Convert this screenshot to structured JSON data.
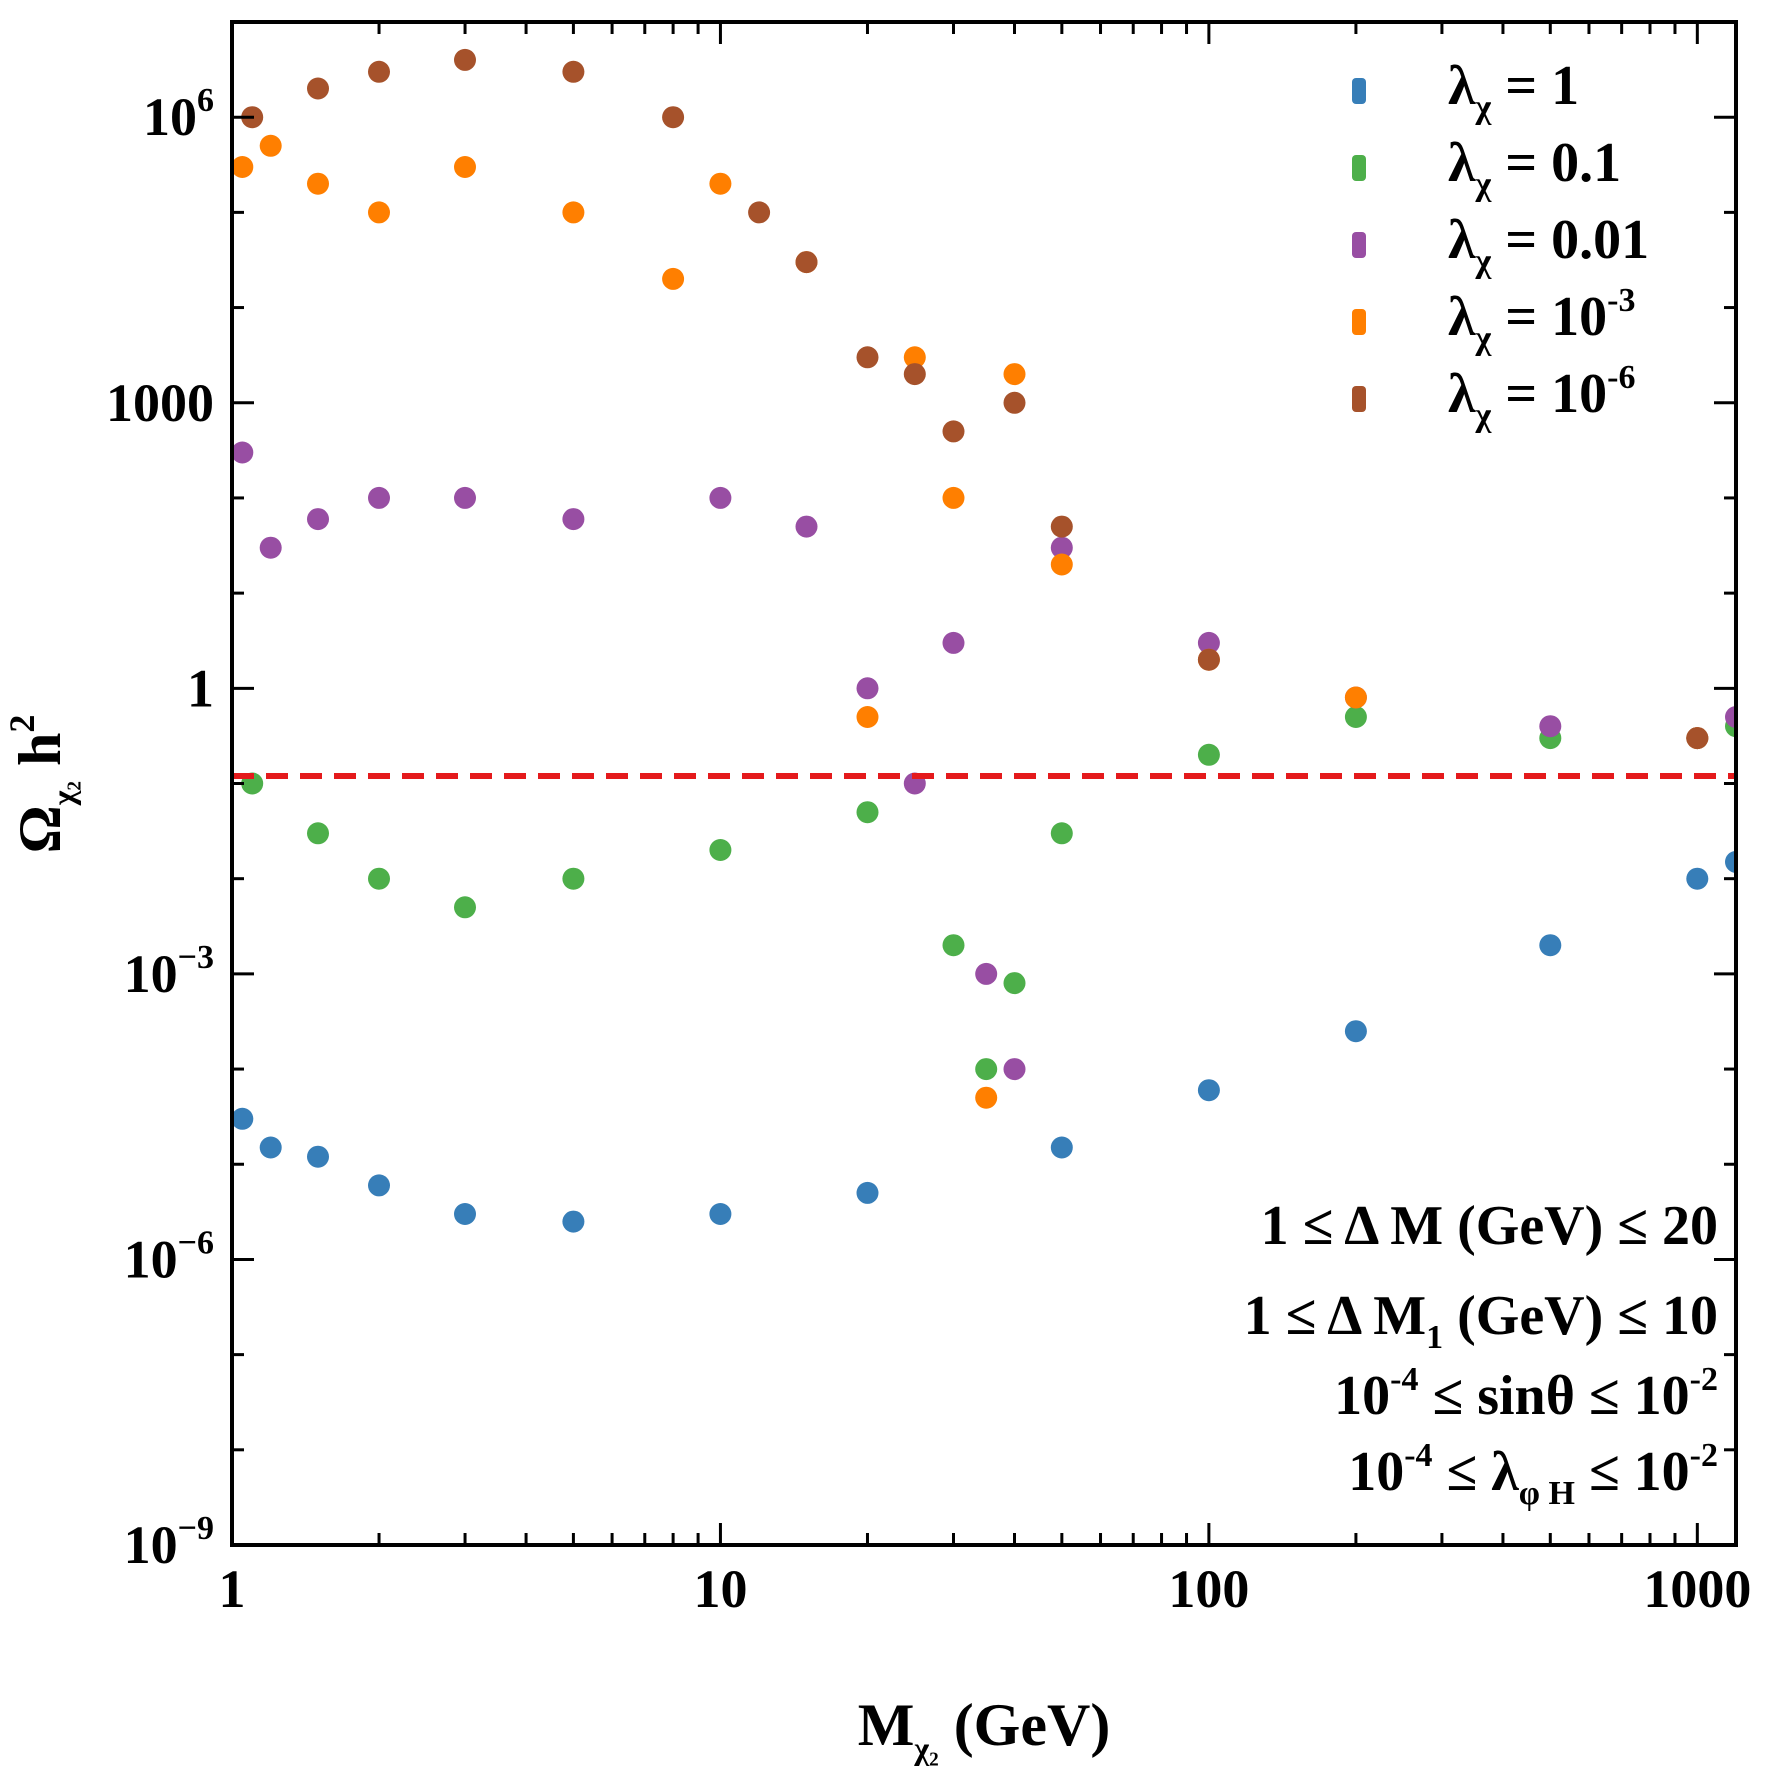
{
  "chart_data": {
    "type": "scatter",
    "xlabel": "M",
    "xlabel_sub": "χ₂",
    "xlabel_unit": "(GeV)",
    "ylabel": "Ω",
    "ylabel_sub": "χ₂",
    "ylabel_tail": "h",
    "ylabel_sup": "2",
    "xscale": "log",
    "yscale": "log",
    "xlim": [
      1,
      1200
    ],
    "ylim": [
      1e-09,
      10000000.0
    ],
    "xticks": [
      {
        "value": 1,
        "label": "1"
      },
      {
        "value": 10,
        "label": "10"
      },
      {
        "value": 100,
        "label": "100"
      },
      {
        "value": 1000,
        "label": "1000"
      }
    ],
    "yticks": [
      {
        "value": 1e-09,
        "base": "10",
        "exp": "−9"
      },
      {
        "value": 1e-06,
        "base": "10",
        "exp": "−6"
      },
      {
        "value": 0.001,
        "base": "10",
        "exp": "−3"
      },
      {
        "value": 1,
        "base": "1",
        "exp": ""
      },
      {
        "value": 1000,
        "base": "1000",
        "exp": ""
      },
      {
        "value": 1000000.0,
        "base": "10",
        "exp": "6"
      }
    ],
    "grid": false,
    "legend_position": "top-right",
    "reference_line": {
      "y": 0.12,
      "style": "dashed",
      "color": "#e41a1c"
    },
    "series": [
      {
        "name": "λχ = 1",
        "label_main": "λ",
        "label_sub": "χ",
        "label_eq": " = 1",
        "label_sup": "",
        "color": "#377eb8",
        "points": [
          [
            1.05,
            3e-05
          ],
          [
            1.2,
            1.5e-05
          ],
          [
            1.5,
            1.2e-05
          ],
          [
            2,
            6e-06
          ],
          [
            3,
            3e-06
          ],
          [
            5,
            2.5e-06
          ],
          [
            10,
            3e-06
          ],
          [
            20,
            5e-06
          ],
          [
            50,
            1.5e-05
          ],
          [
            100,
            6e-05
          ],
          [
            200,
            0.00025
          ],
          [
            500,
            0.002
          ],
          [
            1000,
            0.01
          ],
          [
            1200,
            0.015
          ]
        ]
      },
      {
        "name": "λχ = 0.1",
        "label_main": "λ",
        "label_sub": "χ",
        "label_eq": " = 0.1",
        "label_sup": "",
        "color": "#4daf4a",
        "points": [
          [
            1.1,
            0.1
          ],
          [
            1.5,
            0.03
          ],
          [
            2,
            0.01
          ],
          [
            3,
            0.005
          ],
          [
            5,
            0.01
          ],
          [
            10,
            0.02
          ],
          [
            20,
            0.05
          ],
          [
            30,
            0.002
          ],
          [
            35,
            0.0001
          ],
          [
            40,
            0.0008
          ],
          [
            50,
            0.03
          ],
          [
            100,
            0.2
          ],
          [
            200,
            0.5
          ],
          [
            500,
            0.3
          ],
          [
            1000,
            0.3
          ],
          [
            1200,
            0.4
          ]
        ]
      },
      {
        "name": "λχ = 0.01",
        "label_main": "λ",
        "label_sub": "χ",
        "label_eq": " = 0.01",
        "label_sup": "",
        "color": "#984ea3",
        "points": [
          [
            1.05,
            300
          ],
          [
            1.2,
            30
          ],
          [
            1.5,
            60
          ],
          [
            2,
            100
          ],
          [
            3,
            100
          ],
          [
            5,
            60
          ],
          [
            10,
            100
          ],
          [
            15,
            50
          ],
          [
            20,
            1
          ],
          [
            25,
            0.1
          ],
          [
            30,
            3
          ],
          [
            35,
            0.001
          ],
          [
            40,
            0.0001
          ],
          [
            50,
            30
          ],
          [
            100,
            3
          ],
          [
            200,
            0.8
          ],
          [
            500,
            0.4
          ],
          [
            1000,
            0.3
          ],
          [
            1200,
            0.5
          ]
        ]
      },
      {
        "name": "λχ = 10-3",
        "label_main": "λ",
        "label_sub": "χ",
        "label_eq": " = 10",
        "label_sup": "-3",
        "color": "#ff7f00",
        "points": [
          [
            1.05,
            300000.0
          ],
          [
            1.2,
            500000.0
          ],
          [
            1.5,
            200000.0
          ],
          [
            2,
            100000.0
          ],
          [
            3,
            300000.0
          ],
          [
            5,
            100000.0
          ],
          [
            8,
            20000.0
          ],
          [
            10,
            200000.0
          ],
          [
            15,
            30000.0
          ],
          [
            20,
            0.5
          ],
          [
            25,
            3000
          ],
          [
            30,
            100
          ],
          [
            35,
            5e-05
          ],
          [
            40,
            2000
          ],
          [
            50,
            20
          ],
          [
            100,
            2
          ],
          [
            200,
            0.8
          ],
          [
            1000,
            0.3
          ]
        ]
      },
      {
        "name": "λχ = 10-6",
        "label_main": "λ",
        "label_sub": "χ",
        "label_eq": " = 10",
        "label_sup": "-6",
        "color": "#a6522b",
        "points": [
          [
            1.1,
            1000000.0
          ],
          [
            1.5,
            2000000.0
          ],
          [
            2,
            3000000.0
          ],
          [
            3,
            4000000.0
          ],
          [
            5,
            3000000.0
          ],
          [
            8,
            1000000.0
          ],
          [
            12,
            100000.0
          ],
          [
            15,
            30000.0
          ],
          [
            20,
            3000
          ],
          [
            25,
            2000
          ],
          [
            30,
            500
          ],
          [
            40,
            1000
          ],
          [
            50,
            50
          ],
          [
            100,
            2
          ],
          [
            1000,
            0.3
          ]
        ]
      }
    ],
    "annotations": [
      {
        "lhs": "1 ≤ Δ M (GeV) ≤ 20"
      },
      {
        "pre": "1 ≤ Δ M",
        "sub": "1",
        "post": " (GeV) ≤ 10"
      },
      {
        "a": "10",
        "a_sup": "-4",
        "mid": " ≤ sinθ ≤ 10",
        "b_sup": "-2"
      },
      {
        "a": "10",
        "a_sup": "-4",
        "mid": " ≤ λ",
        "sub": "φ H",
        "mid2": " ≤ 10",
        "b_sup": "-2"
      }
    ]
  }
}
